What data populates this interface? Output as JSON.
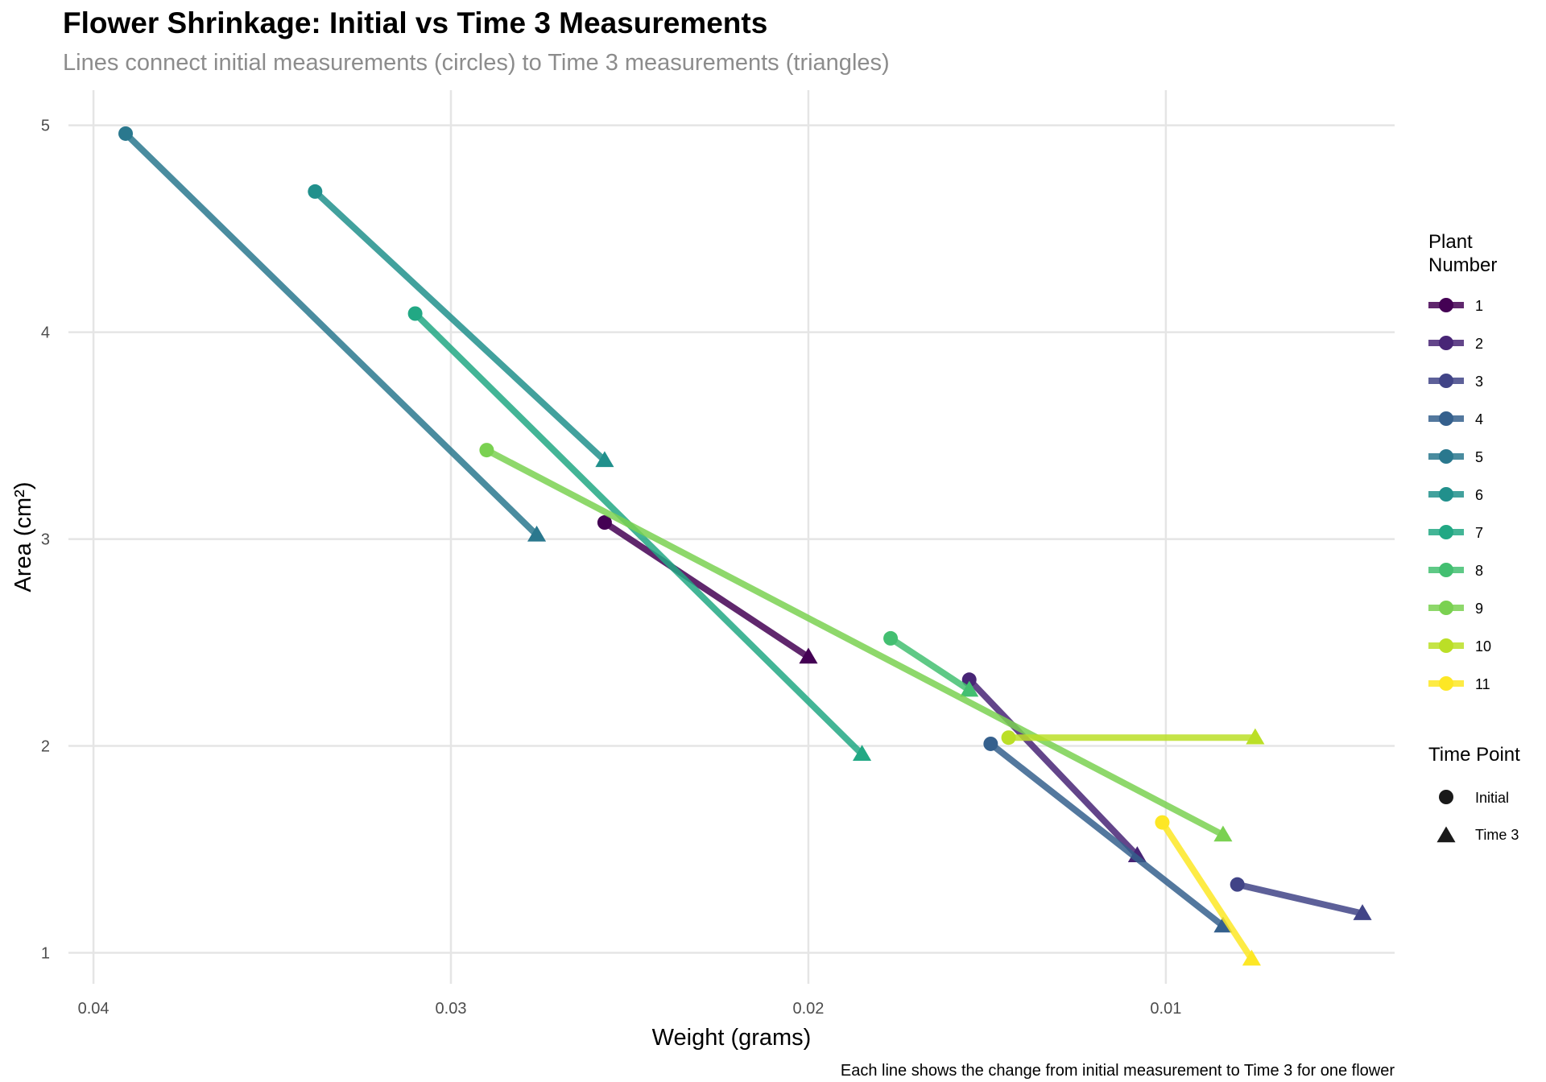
{
  "chart_data": {
    "type": "line",
    "title": "Flower Shrinkage: Initial vs Time 3 Measurements",
    "subtitle": "Lines connect initial measurements (circles) to Time 3 measurements (triangles)",
    "caption": "Each line shows the change from initial measurement to Time 3 for one flower",
    "xlabel": "Weight (grams)",
    "ylabel": "Area (cm²)",
    "x_reversed": true,
    "xlim": [
      0.0407,
      0.0036
    ],
    "ylim": [
      0.85,
      5.17
    ],
    "x_ticks": [
      {
        "value": 0.04,
        "label": "0.04"
      },
      {
        "value": 0.03,
        "label": "0.03"
      },
      {
        "value": 0.02,
        "label": "0.02"
      },
      {
        "value": 0.01,
        "label": "0.01"
      }
    ],
    "y_ticks": [
      {
        "value": 1,
        "label": "1"
      },
      {
        "value": 2,
        "label": "2"
      },
      {
        "value": 3,
        "label": "3"
      },
      {
        "value": 4,
        "label": "4"
      },
      {
        "value": 5,
        "label": "5"
      }
    ],
    "grid": true,
    "legend_position": "right",
    "legend_color_title": "Plant Number",
    "legend_shape_title": "Time Point",
    "shape_legend": [
      {
        "label": "Initial",
        "shape": "circle"
      },
      {
        "label": "Time 3",
        "shape": "triangle"
      }
    ],
    "series": [
      {
        "name": "1",
        "color": "#440154",
        "initial": [
          0.0257,
          3.08
        ],
        "time3": [
          0.02,
          2.43
        ]
      },
      {
        "name": "2",
        "color": "#482576",
        "initial": [
          0.0155,
          2.32
        ],
        "time3": [
          0.0108,
          1.47
        ]
      },
      {
        "name": "3",
        "color": "#414487",
        "initial": [
          0.008,
          1.33
        ],
        "time3": [
          0.0045,
          1.19
        ]
      },
      {
        "name": "4",
        "color": "#35608D",
        "initial": [
          0.0149,
          2.01
        ],
        "time3": [
          0.0084,
          1.13
        ]
      },
      {
        "name": "5",
        "color": "#2A788E",
        "initial": [
          0.0391,
          4.96
        ],
        "time3": [
          0.0276,
          3.02
        ]
      },
      {
        "name": "6",
        "color": "#21908C",
        "initial": [
          0.0338,
          4.68
        ],
        "time3": [
          0.0257,
          3.38
        ]
      },
      {
        "name": "7",
        "color": "#22A884",
        "initial": [
          0.031,
          4.09
        ],
        "time3": [
          0.0185,
          1.96
        ]
      },
      {
        "name": "8",
        "color": "#43BF71",
        "initial": [
          0.0177,
          2.52
        ],
        "time3": [
          0.0155,
          2.27
        ]
      },
      {
        "name": "9",
        "color": "#7AD151",
        "initial": [
          0.029,
          3.43
        ],
        "time3": [
          0.0084,
          1.57
        ]
      },
      {
        "name": "10",
        "color": "#BBDF27",
        "initial": [
          0.0144,
          2.04
        ],
        "time3": [
          0.0075,
          2.04
        ]
      },
      {
        "name": "11",
        "color": "#FDE725",
        "initial": [
          0.0101,
          1.63
        ],
        "time3": [
          0.0076,
          0.97
        ]
      }
    ]
  }
}
